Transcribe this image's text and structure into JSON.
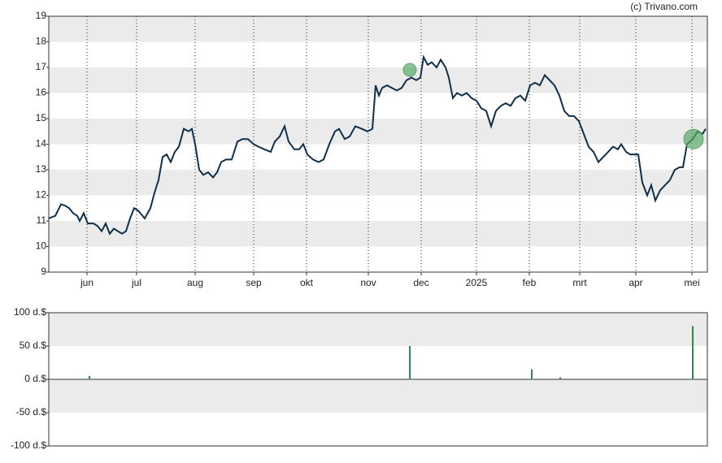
{
  "source": "(c) Trivano.com",
  "chart_data": [
    {
      "type": "line",
      "color": "#0f2f4a",
      "x": [
        0,
        8,
        15,
        20,
        25,
        30,
        35,
        38,
        43,
        48,
        55,
        60,
        65,
        70,
        75,
        80,
        85,
        90,
        95,
        100,
        105,
        110,
        118,
        125,
        130,
        135,
        140,
        145,
        150,
        155,
        160,
        166,
        172,
        176,
        180,
        185,
        190,
        196,
        202,
        207,
        212,
        218,
        225,
        232,
        238,
        245,
        252,
        258,
        265,
        273,
        278,
        284,
        290,
        295,
        302,
        308,
        313,
        318,
        325,
        332,
        338,
        345,
        352,
        357,
        364,
        370,
        377,
        385,
        392,
        398,
        402,
        406,
        410,
        416,
        422,
        428,
        434,
        440,
        446,
        452,
        457,
        461,
        466,
        471,
        477,
        482,
        488,
        492,
        497,
        502,
        508,
        514,
        520,
        526,
        532,
        538,
        544,
        550,
        556,
        562,
        568,
        574,
        580,
        586,
        592,
        598,
        604,
        610,
        616,
        622,
        628,
        634,
        640,
        646,
        652,
        658,
        664,
        670,
        676,
        682,
        688,
        694,
        700,
        704,
        710,
        715,
        720,
        725,
        730,
        736,
        741,
        746,
        752,
        758,
        764,
        770,
        776,
        780,
        785,
        792,
        798,
        804,
        808
      ],
      "values": [
        11.1,
        11.2,
        11.65,
        11.6,
        11.5,
        11.3,
        11.2,
        11.0,
        11.3,
        10.9,
        10.9,
        10.8,
        10.6,
        10.9,
        10.5,
        10.7,
        10.6,
        10.5,
        10.6,
        11.1,
        11.5,
        11.4,
        11.1,
        11.5,
        12.1,
        12.6,
        13.5,
        13.6,
        13.3,
        13.7,
        13.9,
        14.6,
        14.5,
        14.6,
        14.0,
        13.0,
        12.8,
        12.9,
        12.7,
        12.9,
        13.3,
        13.4,
        13.4,
        14.1,
        14.2,
        14.2,
        14.0,
        13.9,
        13.8,
        13.7,
        14.1,
        14.3,
        14.7,
        14.1,
        13.8,
        13.8,
        14.0,
        13.6,
        13.4,
        13.3,
        13.4,
        14.0,
        14.5,
        14.6,
        14.2,
        14.3,
        14.7,
        14.6,
        14.5,
        14.6,
        16.3,
        15.9,
        16.2,
        16.3,
        16.2,
        16.1,
        16.2,
        16.5,
        16.6,
        16.5,
        16.6,
        17.4,
        17.1,
        17.2,
        17.0,
        17.3,
        17.0,
        16.6,
        15.8,
        16.0,
        15.9,
        16.0,
        15.8,
        15.7,
        15.4,
        15.3,
        14.7,
        15.3,
        15.5,
        15.6,
        15.5,
        15.8,
        15.9,
        15.7,
        16.3,
        16.4,
        16.3,
        16.7,
        16.5,
        16.3,
        15.9,
        15.3,
        15.1,
        15.1,
        14.9,
        14.4,
        13.9,
        13.7,
        13.3,
        13.5,
        13.7,
        13.9,
        13.8,
        14.0,
        13.7,
        13.6,
        13.6,
        13.6,
        12.5,
        12.0,
        12.4,
        11.8,
        12.2,
        12.4,
        12.6,
        13.0,
        13.1,
        13.1,
        14.0,
        14.2,
        14.5,
        14.4,
        14.6
      ],
      "markers": {
        "x": [
          444,
          793
        ],
        "y": [
          16.9,
          14.2
        ],
        "color": "#5aa86a"
      },
      "xlim": [
        0,
        810
      ],
      "xticks": [
        {
          "value": 47,
          "label": "jun"
        },
        {
          "value": 108,
          "label": "jul"
        },
        {
          "value": 180,
          "label": "aug"
        },
        {
          "value": 252,
          "label": "sep"
        },
        {
          "value": 317,
          "label": "okt"
        },
        {
          "value": 393,
          "label": "nov"
        },
        {
          "value": 458,
          "label": "dec"
        },
        {
          "value": 526,
          "label": "2025"
        },
        {
          "value": 591,
          "label": "feb"
        },
        {
          "value": 653,
          "label": "mrt"
        },
        {
          "value": 722,
          "label": "apr"
        },
        {
          "value": 791,
          "label": "mei"
        }
      ],
      "ylim": [
        9,
        19
      ],
      "yticks": [
        9,
        10,
        11,
        12,
        13,
        14,
        15,
        16,
        17,
        18,
        19
      ],
      "grid": true
    },
    {
      "type": "bar",
      "color": "#2e8b4a",
      "x": [
        50,
        444,
        594,
        629,
        792
      ],
      "values": [
        5,
        50,
        15,
        3,
        80
      ],
      "xlim": [
        0,
        810
      ],
      "ylim": [
        -100,
        100
      ],
      "yticks": [
        {
          "value": -100,
          "label": "-100 d.$"
        },
        {
          "value": -50,
          "label": "-50 d.$"
        },
        {
          "value": 0,
          "label": "0 d.$"
        },
        {
          "value": 50,
          "label": "50 d.$"
        },
        {
          "value": 100,
          "label": "100 d.$"
        }
      ],
      "grid": true
    }
  ]
}
